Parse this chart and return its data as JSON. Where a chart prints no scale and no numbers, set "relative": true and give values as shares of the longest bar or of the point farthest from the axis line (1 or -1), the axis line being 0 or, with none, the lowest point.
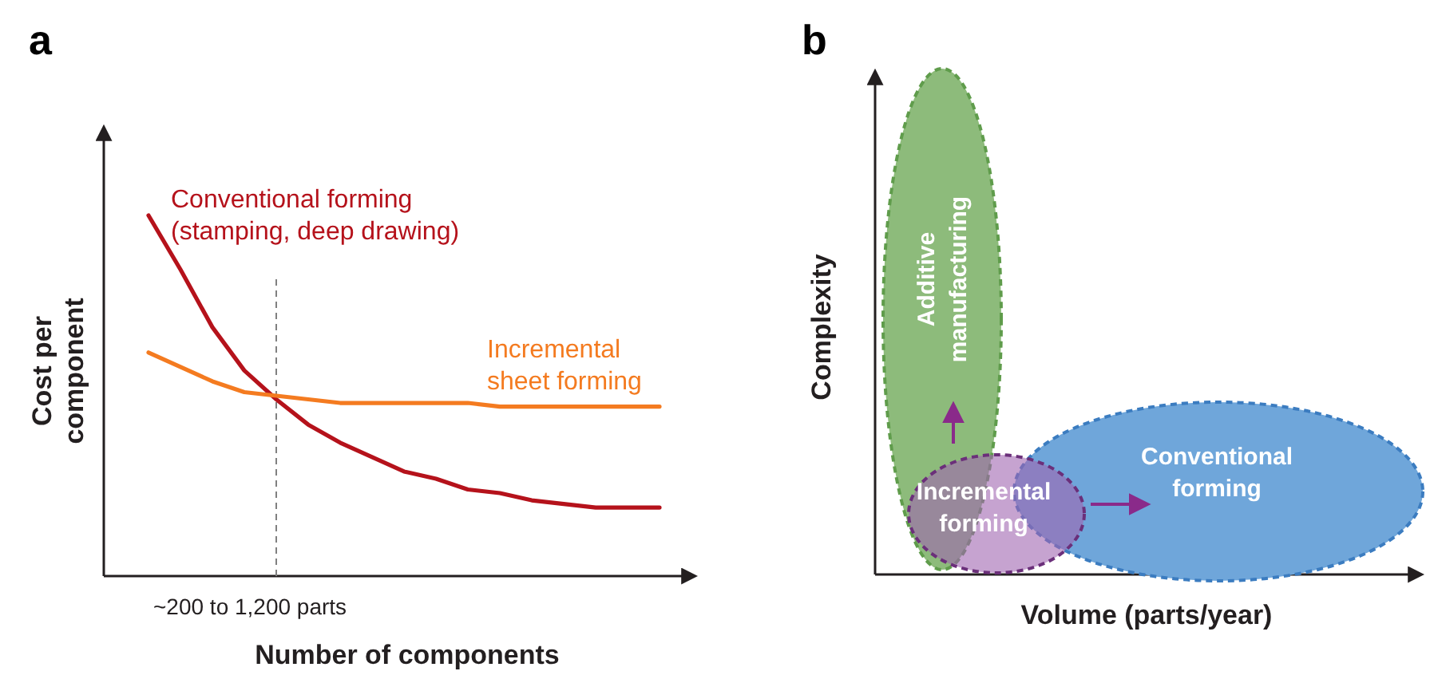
{
  "chart_data": [
    {
      "type": "line",
      "title": "a",
      "xlabel": "Number of components",
      "ylabel": "Cost per component",
      "relative": true,
      "categories": [
        null,
        null,
        null,
        null,
        null,
        null,
        null,
        null,
        null,
        null,
        null,
        null,
        null,
        null,
        null,
        null,
        null
      ],
      "series": [
        {
          "name": "Conventional forming (stamping, deep drawing)",
          "color": "#b5121b",
          "values": [
            1,
            0.85,
            0.69,
            0.57,
            0.49,
            0.42,
            0.37,
            0.33,
            0.29,
            0.27,
            0.24,
            0.23,
            0.21,
            0.2,
            0.19,
            0.19,
            0.19
          ]
        },
        {
          "name": "Incremental sheet forming",
          "color": "#f47b20",
          "values": [
            0.62,
            0.58,
            0.54,
            0.51,
            0.5,
            0.49,
            0.48,
            0.48,
            0.48,
            0.48,
            0.48,
            0.47,
            0.47,
            0.47,
            0.47,
            0.47,
            0.47
          ]
        }
      ],
      "annotations": [
        "~200 to 1,200 parts"
      ]
    },
    {
      "type": "other",
      "title": "b",
      "xlabel": "Volume (parts/year)",
      "ylabel": "Complexity",
      "annotations": [
        "Additive manufacturing",
        "Incremental forming",
        "Conventional forming"
      ]
    }
  ]
}
